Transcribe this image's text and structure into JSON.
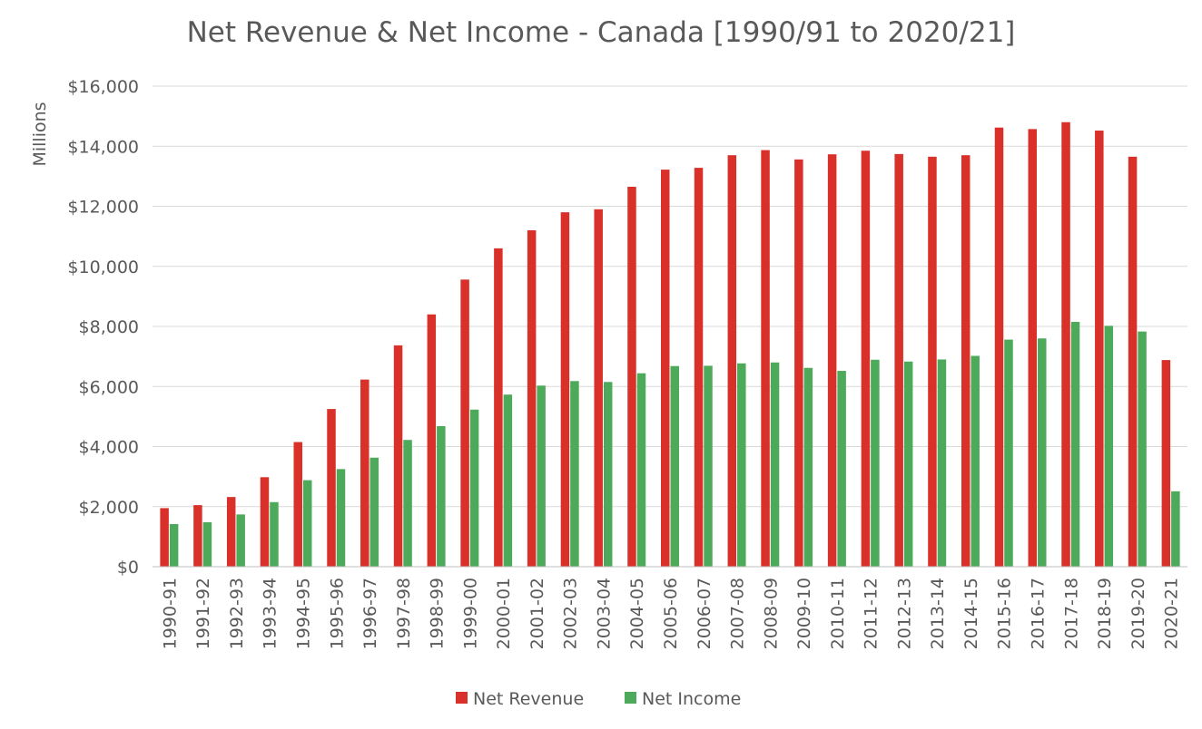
{
  "chart_data": {
    "type": "bar",
    "title": "Net Revenue & Net Income - Canada [1990/91 to 2020/21]",
    "ylabel": "Millions",
    "xlabel": "",
    "ylim": [
      0,
      16000
    ],
    "yticks": [
      0,
      2000,
      4000,
      6000,
      8000,
      10000,
      12000,
      14000,
      16000
    ],
    "ytick_labels": [
      "$0",
      "$2,000",
      "$4,000",
      "$6,000",
      "$8,000",
      "$10,000",
      "$12,000",
      "$14,000",
      "$16,000"
    ],
    "grid": true,
    "legend_position": "bottom",
    "categories": [
      "1990-91",
      "1991-92",
      "1992-93",
      "1993-94",
      "1994-95",
      "1995-96",
      "1996-97",
      "1997-98",
      "1998-99",
      "1999-00",
      "2000-01",
      "2001-02",
      "2002-03",
      "2003-04",
      "2004-05",
      "2005-06",
      "2006-07",
      "2007-08",
      "2008-09",
      "2009-10",
      "2010-11",
      "2011-12",
      "2012-13",
      "2013-14",
      "2014-15",
      "2015-16",
      "2016-17",
      "2017-18",
      "2018-19",
      "2019-20",
      "2020-21"
    ],
    "series": [
      {
        "name": "Net Revenue",
        "color": "#d9302a",
        "values": [
          1950,
          2050,
          2320,
          2980,
          4150,
          5250,
          6230,
          7370,
          8400,
          9560,
          10600,
          11200,
          11800,
          11900,
          12650,
          13220,
          13280,
          13700,
          13870,
          13560,
          13730,
          13850,
          13740,
          13650,
          13700,
          14620,
          14570,
          14800,
          14520,
          13650,
          6880
        ]
      },
      {
        "name": "Net Income",
        "color": "#4daa5b",
        "values": [
          1420,
          1480,
          1740,
          2150,
          2880,
          3250,
          3630,
          4220,
          4680,
          5230,
          5730,
          6030,
          6180,
          6150,
          6440,
          6680,
          6690,
          6770,
          6800,
          6620,
          6520,
          6890,
          6830,
          6900,
          7020,
          7560,
          7600,
          8150,
          8020,
          7830,
          2510
        ]
      }
    ]
  }
}
